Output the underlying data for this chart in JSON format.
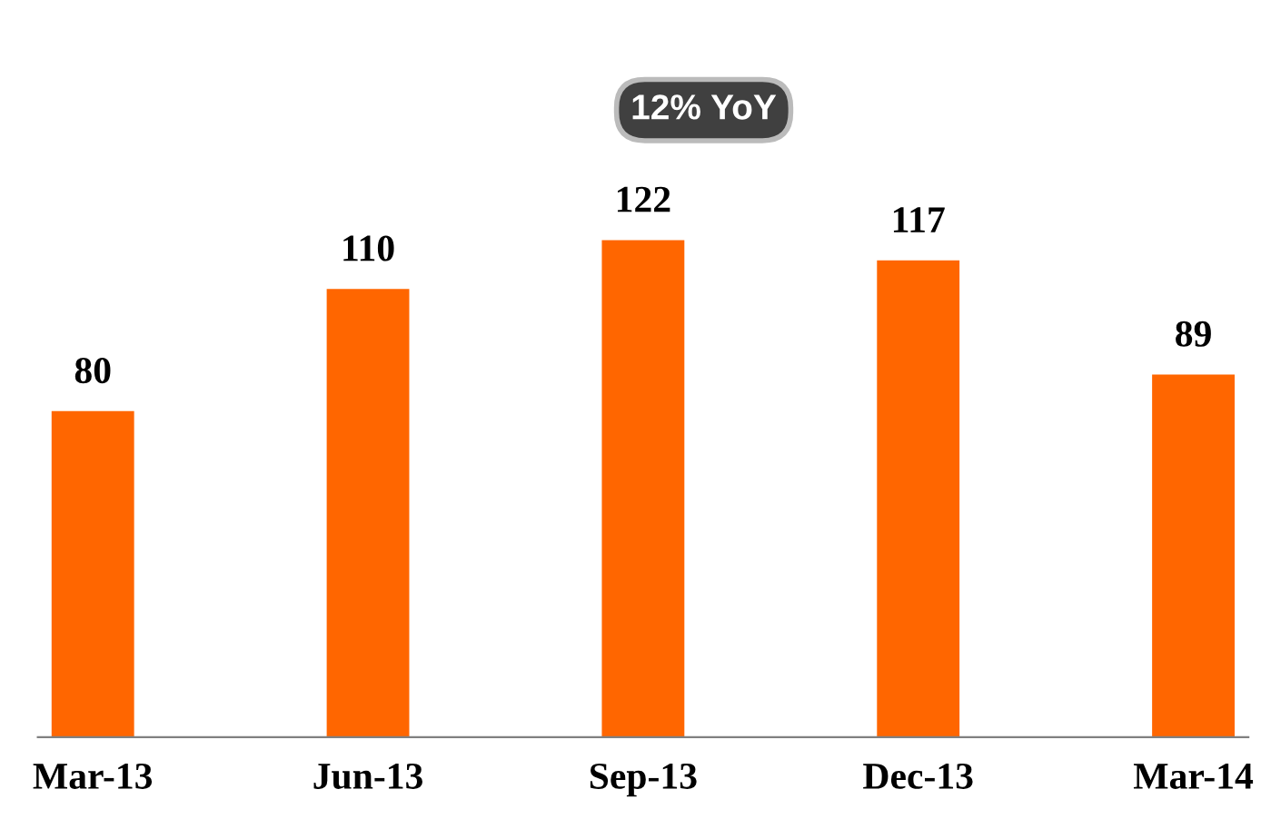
{
  "chart_data": {
    "type": "bar",
    "categories": [
      "Mar-13",
      "Jun-13",
      "Sep-13",
      "Dec-13",
      "Mar-14"
    ],
    "values": [
      80,
      110,
      122,
      117,
      89
    ],
    "color": "#ff6600",
    "data_labels": true,
    "annotations": [
      "12% YoY"
    ]
  }
}
